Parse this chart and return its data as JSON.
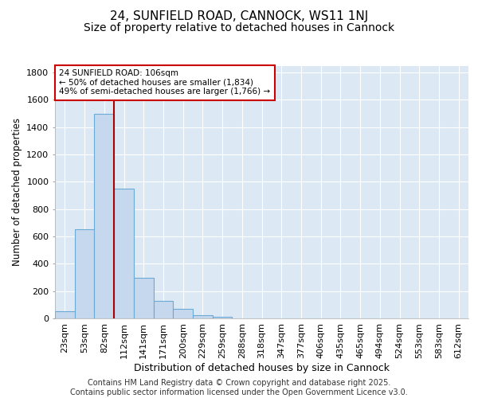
{
  "title1": "24, SUNFIELD ROAD, CANNOCK, WS11 1NJ",
  "title2": "Size of property relative to detached houses in Cannock",
  "xlabel": "Distribution of detached houses by size in Cannock",
  "ylabel": "Number of detached properties",
  "categories": [
    "23sqm",
    "53sqm",
    "82sqm",
    "112sqm",
    "141sqm",
    "171sqm",
    "200sqm",
    "229sqm",
    "259sqm",
    "288sqm",
    "318sqm",
    "347sqm",
    "377sqm",
    "406sqm",
    "435sqm",
    "465sqm",
    "494sqm",
    "524sqm",
    "553sqm",
    "583sqm",
    "612sqm"
  ],
  "values": [
    50,
    650,
    1500,
    950,
    300,
    130,
    70,
    25,
    10,
    2,
    0,
    0,
    0,
    0,
    0,
    0,
    0,
    0,
    0,
    0,
    0
  ],
  "bar_color": "#c5d8ee",
  "bar_edge_color": "#6aaad4",
  "background_color": "#dce9f5",
  "grid_color": "#ffffff",
  "vline_x_index": 2,
  "vline_color": "#aa0000",
  "ylim": [
    0,
    1850
  ],
  "yticks": [
    0,
    200,
    400,
    600,
    800,
    1000,
    1200,
    1400,
    1600,
    1800
  ],
  "annotation_text": "24 SUNFIELD ROAD: 106sqm\n← 50% of detached houses are smaller (1,834)\n49% of semi-detached houses are larger (1,766) →",
  "annotation_box_color": "#ffffff",
  "annotation_box_edge": "#cc0000",
  "footer_text": "Contains HM Land Registry data © Crown copyright and database right 2025.\nContains public sector information licensed under the Open Government Licence v3.0.",
  "title1_fontsize": 11,
  "title2_fontsize": 10,
  "xlabel_fontsize": 9,
  "ylabel_fontsize": 8.5,
  "tick_fontsize": 8,
  "annotation_fontsize": 7.5,
  "footer_fontsize": 7
}
